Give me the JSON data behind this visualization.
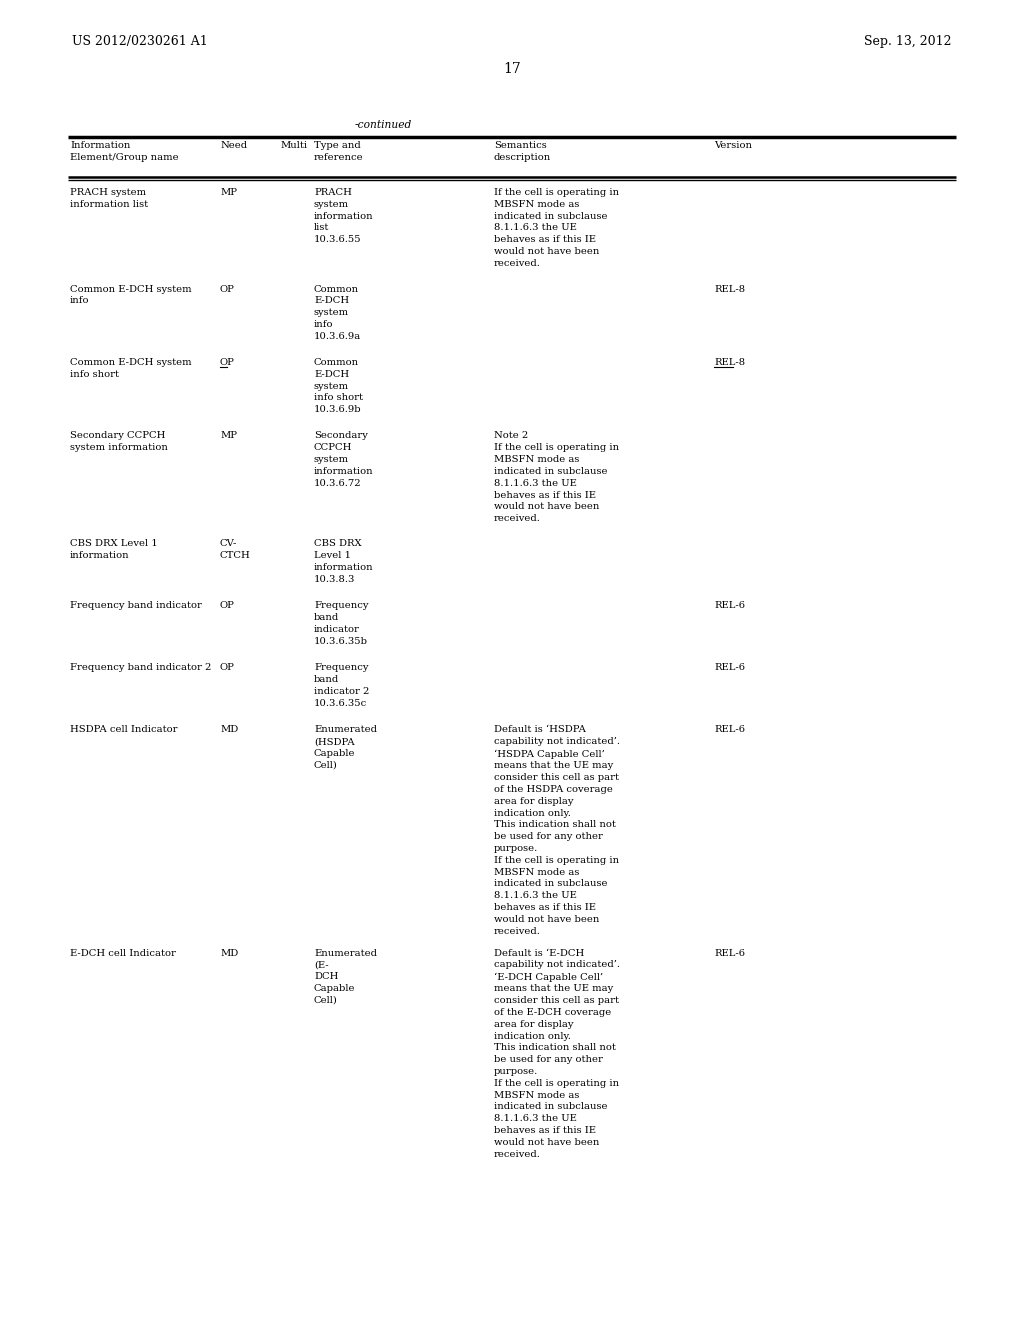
{
  "page_header_left": "US 2012/0230261 A1",
  "page_header_right": "Sep. 13, 2012",
  "page_number": "17",
  "table_title": "-continued",
  "bg_color": "#ffffff",
  "text_color": "#000000",
  "font_size": 7.2,
  "rows": [
    {
      "name": "PRACH system\ninformation list",
      "need": "MP",
      "need_underline": false,
      "multi": "",
      "type_ref": "PRACH\nsystem\ninformation\nlist\n10.3.6.55",
      "semantics": "If the cell is operating in\nMBSFN mode as\nindicated in subclause\n8.1.1.6.3 the UE\nbehaves as if this IE\nwould not have been\nreceived.",
      "version": "",
      "version_underline": false
    },
    {
      "name": "Common E-DCH system\ninfo",
      "need": "OP",
      "need_underline": false,
      "multi": "",
      "type_ref": "Common\nE-DCH\nsystem\ninfo\n10.3.6.9a",
      "semantics": "",
      "version": "REL-8",
      "version_underline": false
    },
    {
      "name": "Common E-DCH system\ninfo short",
      "need": "OP",
      "need_underline": true,
      "multi": "",
      "type_ref": "Common\nE-DCH\nsystem\ninfo short\n10.3.6.9b",
      "semantics": "",
      "version": "REL-8",
      "version_underline": true
    },
    {
      "name": "Secondary CCPCH\nsystem information",
      "need": "MP",
      "need_underline": false,
      "multi": "",
      "type_ref": "Secondary\nCCPCH\nsystem\ninformation\n10.3.6.72",
      "semantics": "Note 2\nIf the cell is operating in\nMBSFN mode as\nindicated in subclause\n8.1.1.6.3 the UE\nbehaves as if this IE\nwould not have been\nreceived.",
      "version": "",
      "version_underline": false
    },
    {
      "name": "CBS DRX Level 1\ninformation",
      "need": "CV-\nCTCH",
      "need_underline": false,
      "multi": "",
      "type_ref": "CBS DRX\nLevel 1\ninformation\n10.3.8.3",
      "semantics": "",
      "version": "",
      "version_underline": false
    },
    {
      "name": "Frequency band indicator",
      "need": "OP",
      "need_underline": false,
      "multi": "",
      "type_ref": "Frequency\nband\nindicator\n10.3.6.35b",
      "semantics": "",
      "version": "REL-6",
      "version_underline": false
    },
    {
      "name": "Frequency band indicator 2",
      "need": "OP",
      "need_underline": false,
      "multi": "",
      "type_ref": "Frequency\nband\nindicator 2\n10.3.6.35c",
      "semantics": "",
      "version": "REL-6",
      "version_underline": false
    },
    {
      "name": "HSDPA cell Indicator",
      "need": "MD",
      "need_underline": false,
      "multi": "",
      "type_ref": "Enumerated\n(HSDPA\nCapable\nCell)",
      "semantics": "Default is ‘HSDPA\ncapability not indicated’.\n‘HSDPA Capable Cell’\nmeans that the UE may\nconsider this cell as part\nof the HSDPA coverage\narea for display\nindication only.\nThis indication shall not\nbe used for any other\npurpose.\nIf the cell is operating in\nMBSFN mode as\nindicated in subclause\n8.1.1.6.3 the UE\nbehaves as if this IE\nwould not have been\nreceived.",
      "version": "REL-6",
      "version_underline": false
    },
    {
      "name": "E-DCH cell Indicator",
      "need": "MD",
      "need_underline": false,
      "multi": "",
      "type_ref": "Enumerated\n(E-\nDCH\nCapable\nCell)",
      "semantics": "Default is ‘E-DCH\ncapability not indicated’.\n‘E-DCH Capable Cell’\nmeans that the UE may\nconsider this cell as part\nof the E-DCH coverage\narea for display\nindication only.\nThis indication shall not\nbe used for any other\npurpose.\nIf the cell is operating in\nMBSFN mode as\nindicated in subclause\n8.1.1.6.3 the UE\nbehaves as if this IE\nwould not have been\nreceived.",
      "version": "REL-6",
      "version_underline": false
    }
  ]
}
